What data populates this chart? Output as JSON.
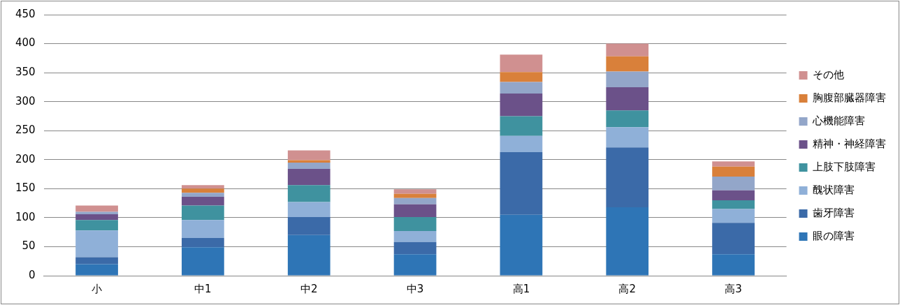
{
  "chart_data": {
    "type": "bar",
    "stacked": true,
    "categories": [
      "小",
      "中1",
      "中2",
      "中3",
      "高1",
      "高2",
      "高3"
    ],
    "series": [
      {
        "name": "眼の障害",
        "color": "#2e75b6",
        "values": [
          20,
          49,
          70,
          37,
          105,
          118,
          37
        ]
      },
      {
        "name": "歯牙障害",
        "color": "#3b6aa8",
        "values": [
          12,
          16,
          31,
          21,
          108,
          103,
          54
        ]
      },
      {
        "name": "醜状障害",
        "color": "#8fb0d8",
        "values": [
          46,
          31,
          26,
          19,
          28,
          35,
          24
        ]
      },
      {
        "name": "上肢下肢障害",
        "color": "#3f929f",
        "values": [
          18,
          25,
          29,
          24,
          34,
          29,
          15
        ]
      },
      {
        "name": "精神・神経障害",
        "color": "#6b5189",
        "values": [
          10,
          15,
          28,
          22,
          39,
          40,
          17
        ]
      },
      {
        "name": "心機能障害",
        "color": "#93a6c9",
        "values": [
          4,
          7,
          11,
          11,
          20,
          27,
          24
        ]
      },
      {
        "name": "胸腹部臓器障害",
        "color": "#d9803a",
        "values": [
          0,
          7,
          4,
          7,
          17,
          26,
          17
        ]
      },
      {
        "name": "その他",
        "color": "#d09090",
        "values": [
          11,
          6,
          17,
          8,
          30,
          22,
          9
        ]
      }
    ],
    "ylim": [
      0,
      450
    ],
    "yticks": [
      0,
      50,
      100,
      150,
      200,
      250,
      300,
      350,
      400,
      450
    ],
    "grid": "y",
    "legend": "right"
  }
}
